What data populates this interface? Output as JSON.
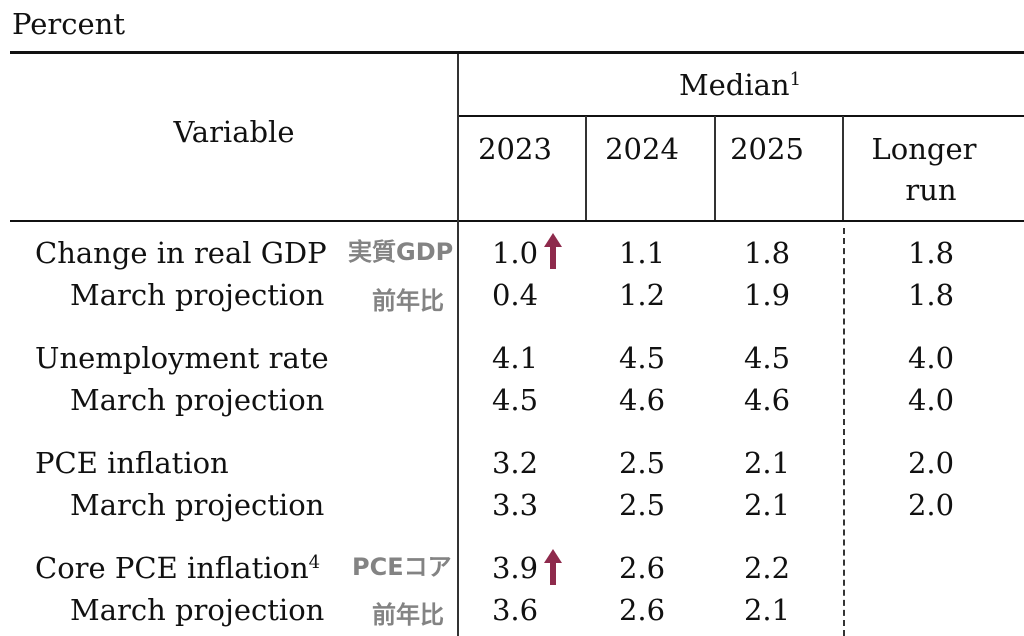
{
  "caption": "Percent",
  "header": {
    "variable": "Variable",
    "median": "Median",
    "median_note": "1",
    "years": [
      "2023",
      "2024",
      "2025"
    ],
    "longer_run_line1": "Longer",
    "longer_run_line2": "run"
  },
  "rows": [
    {
      "label": "Change in real GDP",
      "note": "",
      "values": [
        "1.0",
        "1.1",
        "1.8",
        "1.8"
      ]
    },
    {
      "label": "March projection",
      "note": "",
      "values": [
        "0.4",
        "1.2",
        "1.9",
        "1.8"
      ]
    },
    {
      "label": "Unemployment rate",
      "note": "",
      "values": [
        "4.1",
        "4.5",
        "4.5",
        "4.0"
      ]
    },
    {
      "label": "March projection",
      "note": "",
      "values": [
        "4.5",
        "4.6",
        "4.6",
        "4.0"
      ]
    },
    {
      "label": "PCE inflation",
      "note": "",
      "values": [
        "3.2",
        "2.5",
        "2.1",
        "2.0"
      ]
    },
    {
      "label": "March projection",
      "note": "",
      "values": [
        "3.3",
        "2.5",
        "2.1",
        "2.0"
      ]
    },
    {
      "label": "Core PCE inflation",
      "note": "4",
      "values": [
        "3.9",
        "2.6",
        "2.2",
        ""
      ]
    },
    {
      "label": "March projection",
      "note": "",
      "values": [
        "3.6",
        "2.6",
        "2.1",
        ""
      ]
    }
  ],
  "annotations": {
    "gdp_jp": "実質GDP",
    "gdp_yoy_jp": "前年比",
    "core_pce_jp": "PCEコア",
    "core_pce_yoy_jp": "前年比",
    "arrow_color": "#8e2a4c"
  }
}
